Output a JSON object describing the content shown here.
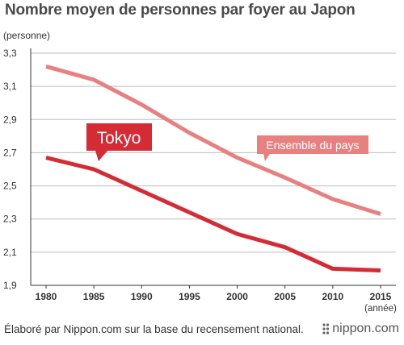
{
  "header": {
    "title": "Nombre moyen de personnes par foyer au Japon",
    "unit_label": "(personne)"
  },
  "footer": {
    "source_note": "Élaboré par Nippon.com sur la base du recensement national.",
    "brand": "nippon.com"
  },
  "colors": {
    "tokyo": "#d52b35",
    "national": "#e88080",
    "grid": "#bdbdbd",
    "axis": "#333333"
  },
  "chart_data": {
    "type": "line",
    "title": "Nombre moyen de personnes par foyer au Japon",
    "ylabel": "(personne)",
    "xlabel": "(année)",
    "x": [
      1980,
      1985,
      1990,
      1995,
      2000,
      2005,
      2010,
      2015
    ],
    "y_ticks": [
      "1,9",
      "2,1",
      "2,3",
      "2,5",
      "2,7",
      "2,9",
      "3,1",
      "3,3"
    ],
    "ylim": [
      1.9,
      3.3
    ],
    "grid": true,
    "series": [
      {
        "name": "Tokyo",
        "color": "#d52b35",
        "values": [
          2.67,
          2.6,
          2.47,
          2.34,
          2.21,
          2.13,
          2.0,
          1.99
        ]
      },
      {
        "name": "Ensemble du pays",
        "color": "#e88080",
        "values": [
          3.22,
          3.14,
          2.99,
          2.82,
          2.67,
          2.55,
          2.42,
          2.33
        ]
      }
    ]
  }
}
